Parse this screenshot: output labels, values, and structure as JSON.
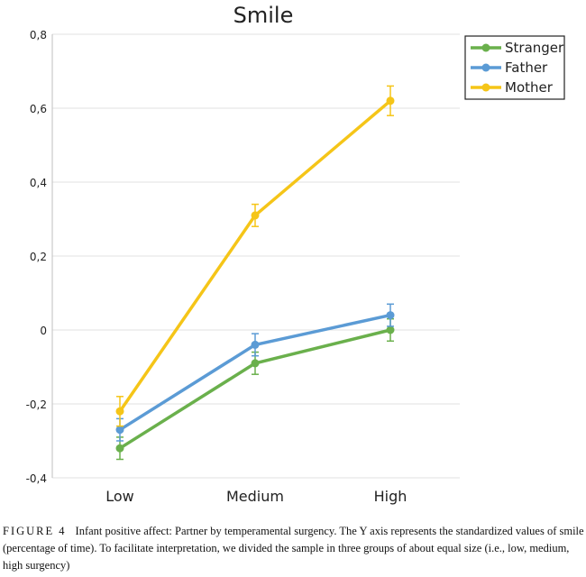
{
  "chart_data": {
    "type": "line",
    "title": "Smile",
    "xlabel": "",
    "ylabel": "",
    "categories": [
      "Low",
      "Medium",
      "High"
    ],
    "ylim": [
      -0.4,
      0.8
    ],
    "yticks": [
      "-0,4",
      "-0,2",
      "0",
      "0,2",
      "0,4",
      "0,6",
      "0,8"
    ],
    "ytick_values": [
      -0.4,
      -0.2,
      0,
      0.2,
      0.4,
      0.6,
      0.8
    ],
    "grid": true,
    "legend_position": "top-right",
    "series": [
      {
        "name": "Stranger",
        "color": "#6ab04c",
        "values": [
          -0.32,
          -0.09,
          0.0
        ],
        "errors": [
          0.03,
          0.03,
          0.03
        ]
      },
      {
        "name": "Father",
        "color": "#5b9bd5",
        "values": [
          -0.27,
          -0.04,
          0.04
        ],
        "errors": [
          0.03,
          0.03,
          0.03
        ]
      },
      {
        "name": "Mother",
        "color": "#f5c518",
        "values": [
          -0.22,
          0.31,
          0.62
        ],
        "errors": [
          0.04,
          0.03,
          0.04
        ]
      }
    ]
  },
  "caption": {
    "label": "FIGURE 4",
    "text": "Infant positive affect: Partner by temperamental surgency. The Y axis represents the standardized values of smile (percentage of time). To facilitate interpretation, we divided the sample in three groups of about equal size (i.e., low, medium, high surgency)"
  }
}
